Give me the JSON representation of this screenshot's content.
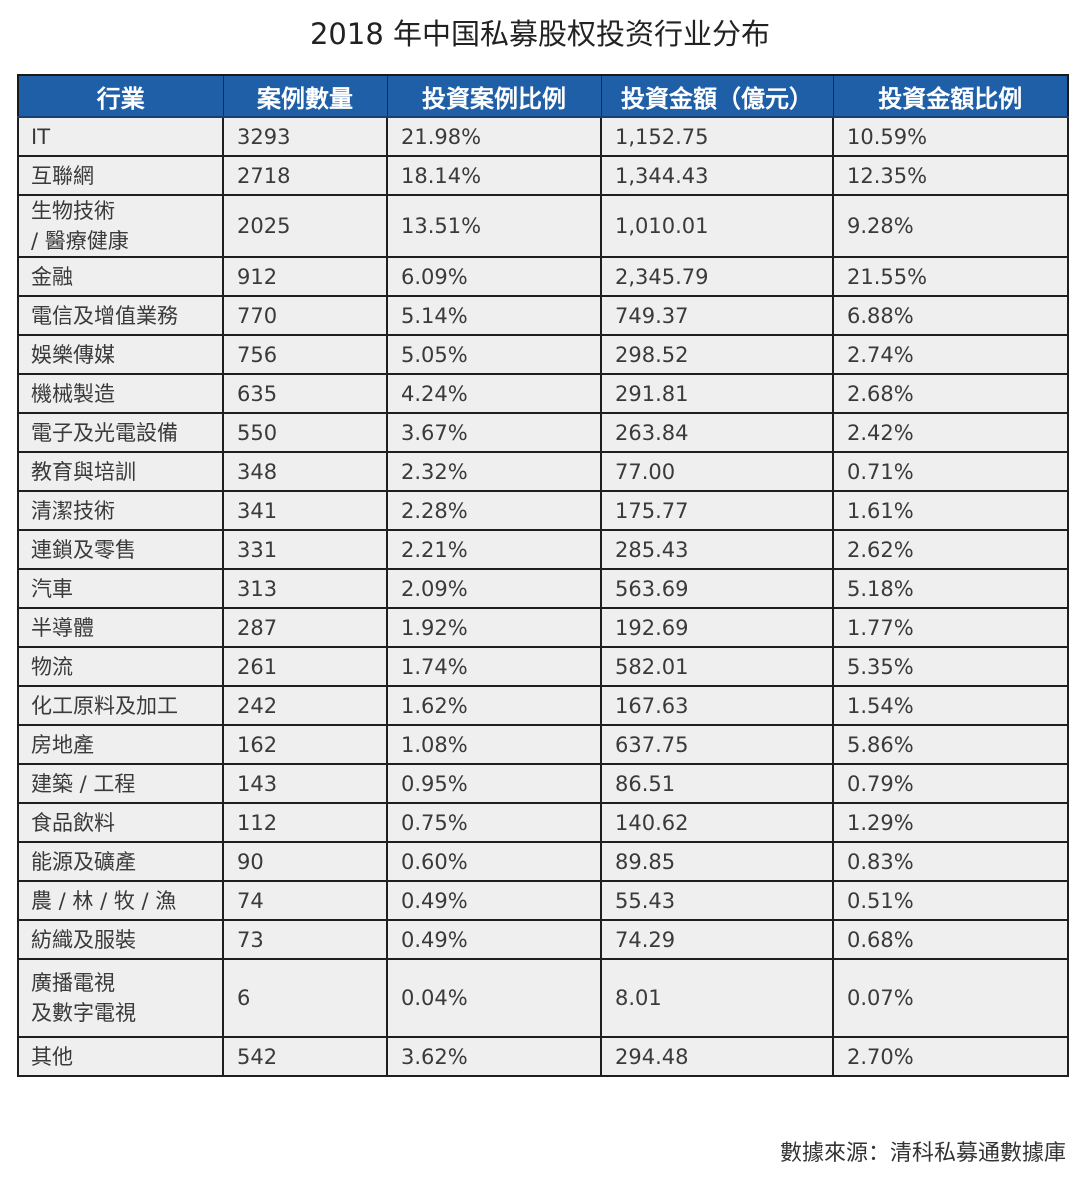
{
  "title": "2018 年中国私募股权投资行业分布",
  "table": {
    "headers": [
      "行業",
      "案例數量",
      "投資案例比例",
      "投資金額（億元）",
      "投資金額比例"
    ],
    "rows": [
      {
        "industry": "IT",
        "cases": "3293",
        "case_ratio": "21.98%",
        "amount": "1,152.75",
        "amount_ratio": "10.59%"
      },
      {
        "industry": "互聯網",
        "cases": "2718",
        "case_ratio": "18.14%",
        "amount": "1,344.43",
        "amount_ratio": "12.35%"
      },
      {
        "industry": "生物技術\n/ 醫療健康",
        "cases": "2025",
        "case_ratio": "13.51%",
        "amount": "1,010.01",
        "amount_ratio": "9.28%"
      },
      {
        "industry": "金融",
        "cases": "912",
        "case_ratio": "6.09%",
        "amount": "2,345.79",
        "amount_ratio": "21.55%"
      },
      {
        "industry": "電信及增值業務",
        "cases": "770",
        "case_ratio": "5.14%",
        "amount": "749.37",
        "amount_ratio": "6.88%"
      },
      {
        "industry": "娛樂傳媒",
        "cases": "756",
        "case_ratio": "5.05%",
        "amount": "298.52",
        "amount_ratio": "2.74%"
      },
      {
        "industry": "機械製造",
        "cases": "635",
        "case_ratio": "4.24%",
        "amount": "291.81",
        "amount_ratio": "2.68%"
      },
      {
        "industry": "電子及光電設備",
        "cases": "550",
        "case_ratio": "3.67%",
        "amount": "263.84",
        "amount_ratio": "2.42%"
      },
      {
        "industry": "教育與培訓",
        "cases": "348",
        "case_ratio": "2.32%",
        "amount": "77.00",
        "amount_ratio": "0.71%"
      },
      {
        "industry": "清潔技術",
        "cases": "341",
        "case_ratio": "2.28%",
        "amount": "175.77",
        "amount_ratio": "1.61%"
      },
      {
        "industry": "連鎖及零售",
        "cases": "331",
        "case_ratio": "2.21%",
        "amount": "285.43",
        "amount_ratio": "2.62%"
      },
      {
        "industry": "汽車",
        "cases": "313",
        "case_ratio": "2.09%",
        "amount": "563.69",
        "amount_ratio": "5.18%"
      },
      {
        "industry": "半導體",
        "cases": "287",
        "case_ratio": "1.92%",
        "amount": "192.69",
        "amount_ratio": "1.77%"
      },
      {
        "industry": "物流",
        "cases": "261",
        "case_ratio": "1.74%",
        "amount": "582.01",
        "amount_ratio": "5.35%"
      },
      {
        "industry": "化工原料及加工",
        "cases": "242",
        "case_ratio": "1.62%",
        "amount": "167.63",
        "amount_ratio": "1.54%"
      },
      {
        "industry": "房地產",
        "cases": "162",
        "case_ratio": "1.08%",
        "amount": "637.75",
        "amount_ratio": "5.86%"
      },
      {
        "industry": "建築 / 工程",
        "cases": "143",
        "case_ratio": "0.95%",
        "amount": "86.51",
        "amount_ratio": "0.79%"
      },
      {
        "industry": "食品飲料",
        "cases": "112",
        "case_ratio": "0.75%",
        "amount": "140.62",
        "amount_ratio": "1.29%"
      },
      {
        "industry": "能源及礦產",
        "cases": "90",
        "case_ratio": "0.60%",
        "amount": "89.85",
        "amount_ratio": "0.83%"
      },
      {
        "industry": "農 / 林 / 牧 / 漁",
        "cases": "74",
        "case_ratio": "0.49%",
        "amount": "55.43",
        "amount_ratio": "0.51%"
      },
      {
        "industry": "紡織及服裝",
        "cases": "73",
        "case_ratio": "0.49%",
        "amount": "74.29",
        "amount_ratio": "0.68%"
      },
      {
        "industry": "廣播電視\n及數字電視",
        "cases": "6",
        "case_ratio": "0.04%",
        "amount": "8.01",
        "amount_ratio": "0.07%"
      },
      {
        "industry": "其他",
        "cases": "542",
        "case_ratio": "3.62%",
        "amount": "294.48",
        "amount_ratio": "2.70%"
      }
    ]
  },
  "source": "數據來源：清科私募通數據庫",
  "colors": {
    "header_bg": "#1f5fa8",
    "header_text": "#ffffff",
    "cell_bg": "#efefef",
    "border": "#1f1f1f"
  }
}
